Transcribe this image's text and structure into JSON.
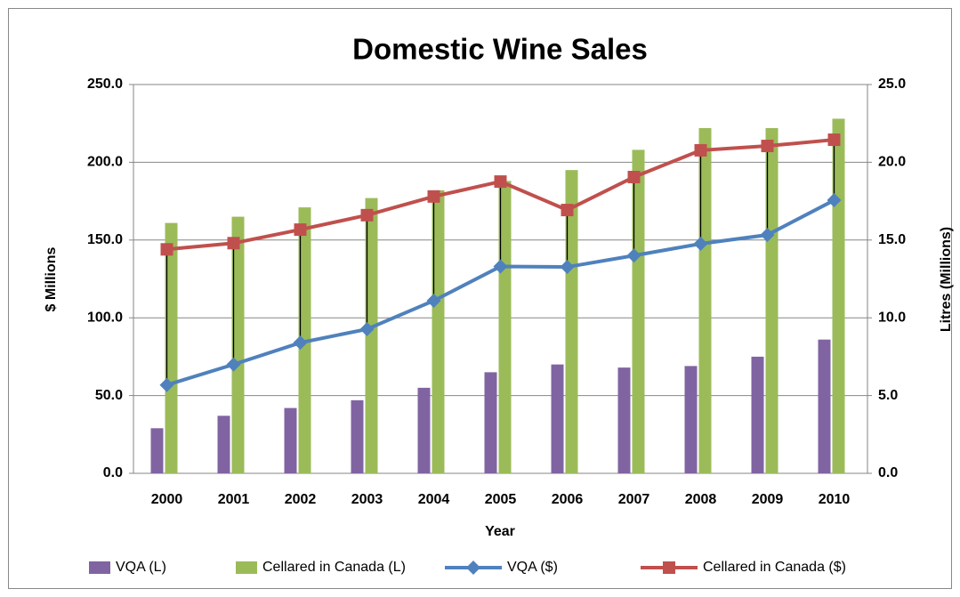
{
  "chart_data": {
    "type": "bar-line",
    "title": "Domestic Wine Sales",
    "x_label": "Year",
    "y_label": "$ Millions",
    "y2_label": "Litres (Millions)",
    "categories": [
      "2000",
      "2001",
      "2002",
      "2003",
      "2004",
      "2005",
      "2006",
      "2007",
      "2008",
      "2009",
      "2010"
    ],
    "series": [
      {
        "name": "VQA (L)",
        "type": "bar",
        "axis": "y2",
        "color": "#8064a2",
        "values": [
          2.9,
          3.7,
          4.2,
          4.7,
          5.5,
          6.5,
          7.0,
          6.8,
          6.9,
          7.5,
          8.6
        ]
      },
      {
        "name": "Cellared in Canada (L)",
        "type": "bar",
        "axis": "y2",
        "color": "#9bbb59",
        "values": [
          16.1,
          16.5,
          17.1,
          17.7,
          18.2,
          18.8,
          19.5,
          20.8,
          22.2,
          22.2,
          22.8
        ]
      },
      {
        "name": "VQA ($)",
        "type": "line",
        "marker": "diamond",
        "color": "#4f81bd",
        "values": [
          56.8,
          70,
          84,
          92.7,
          111,
          133,
          132.7,
          140,
          147.6,
          153.3,
          175.6
        ]
      },
      {
        "name": "Cellared in Canada ($)",
        "type": "line",
        "marker": "square",
        "color": "#c0504d",
        "values": [
          144,
          148,
          156.7,
          166,
          178,
          187.6,
          169.3,
          190.5,
          207.7,
          210.5,
          214.5
        ]
      }
    ],
    "ylim": [
      0,
      250
    ],
    "yticks": [
      {
        "value": 0,
        "label": "0.0"
      },
      {
        "value": 50,
        "label": "50.0"
      },
      {
        "value": 100,
        "label": "100.0"
      },
      {
        "value": 150,
        "label": "150.0"
      },
      {
        "value": 200,
        "label": "200.0"
      },
      {
        "value": 250,
        "label": "250.0"
      }
    ],
    "y2lim": [
      0,
      25
    ],
    "y2ticks": [
      {
        "value": 0,
        "label": "0.0"
      },
      {
        "value": 5,
        "label": "5.0"
      },
      {
        "value": 10,
        "label": "10.0"
      },
      {
        "value": 15,
        "label": "15.0"
      },
      {
        "value": 20,
        "label": "20.0"
      },
      {
        "value": 25,
        "label": "25.0"
      }
    ],
    "grid": true,
    "high_low_lines": true,
    "legend": "bottom"
  }
}
